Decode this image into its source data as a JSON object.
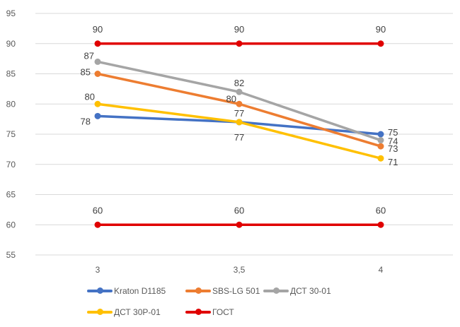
{
  "chart_data": {
    "type": "line",
    "categories": [
      "3",
      "3,5",
      "4"
    ],
    "ylim": [
      55,
      95
    ],
    "yticks": [
      "55",
      "60",
      "65",
      "70",
      "75",
      "80",
      "85",
      "90",
      "95"
    ],
    "grid": true,
    "legend_position": "bottom",
    "series": [
      {
        "name": "Kraton D1185",
        "color": "#4472C4",
        "values": [
          78,
          77,
          75
        ]
      },
      {
        "name": "SBS-LG 501",
        "color": "#ED7D31",
        "values": [
          85,
          80,
          73
        ]
      },
      {
        "name": "ДСТ 30-01",
        "color": "#A5A5A5",
        "values": [
          87,
          82,
          74
        ]
      },
      {
        "name": "ДСТ 30Р-01",
        "color": "#FFC000",
        "values": [
          80,
          77,
          71
        ]
      },
      {
        "name": "ГОСТ",
        "color": "#E00000",
        "values": [
          90,
          90,
          90
        ]
      },
      {
        "name": "ГОСТ",
        "color": "#E00000",
        "values": [
          60,
          60,
          60
        ],
        "legend": false
      }
    ]
  }
}
